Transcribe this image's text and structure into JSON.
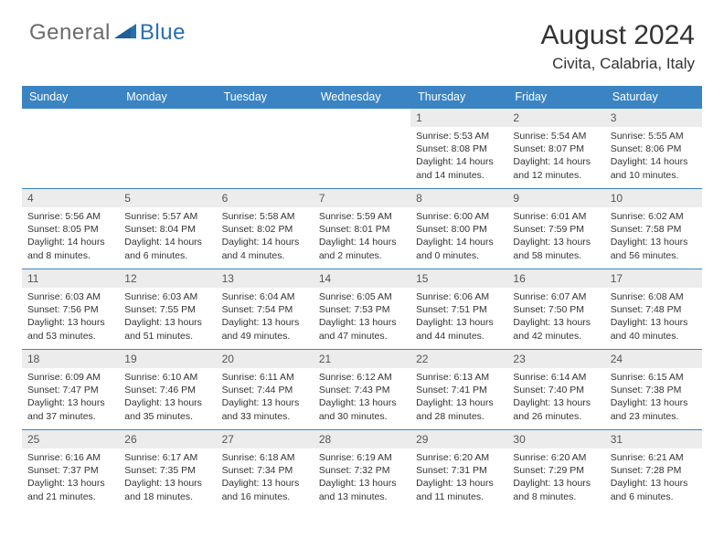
{
  "brand": {
    "text1": "General",
    "text2": "Blue"
  },
  "title": "August 2024",
  "location": "Civita, Calabria, Italy",
  "weekdays": [
    "Sunday",
    "Monday",
    "Tuesday",
    "Wednesday",
    "Thursday",
    "Friday",
    "Saturday"
  ],
  "colors": {
    "header_bg": "#3b84c4",
    "header_fg": "#ffffff",
    "daybar_bg": "#ececec",
    "divider": "#3b84c4",
    "logo_blue": "#2a6fb0",
    "logo_grey": "#6b6b6b"
  },
  "grid": [
    [
      {
        "empty": true
      },
      {
        "empty": true
      },
      {
        "empty": true
      },
      {
        "empty": true
      },
      {
        "day": "1",
        "sunrise": "Sunrise: 5:53 AM",
        "sunset": "Sunset: 8:08 PM",
        "daylight": "Daylight: 14 hours and 14 minutes."
      },
      {
        "day": "2",
        "sunrise": "Sunrise: 5:54 AM",
        "sunset": "Sunset: 8:07 PM",
        "daylight": "Daylight: 14 hours and 12 minutes."
      },
      {
        "day": "3",
        "sunrise": "Sunrise: 5:55 AM",
        "sunset": "Sunset: 8:06 PM",
        "daylight": "Daylight: 14 hours and 10 minutes."
      }
    ],
    [
      {
        "day": "4",
        "sunrise": "Sunrise: 5:56 AM",
        "sunset": "Sunset: 8:05 PM",
        "daylight": "Daylight: 14 hours and 8 minutes."
      },
      {
        "day": "5",
        "sunrise": "Sunrise: 5:57 AM",
        "sunset": "Sunset: 8:04 PM",
        "daylight": "Daylight: 14 hours and 6 minutes."
      },
      {
        "day": "6",
        "sunrise": "Sunrise: 5:58 AM",
        "sunset": "Sunset: 8:02 PM",
        "daylight": "Daylight: 14 hours and 4 minutes."
      },
      {
        "day": "7",
        "sunrise": "Sunrise: 5:59 AM",
        "sunset": "Sunset: 8:01 PM",
        "daylight": "Daylight: 14 hours and 2 minutes."
      },
      {
        "day": "8",
        "sunrise": "Sunrise: 6:00 AM",
        "sunset": "Sunset: 8:00 PM",
        "daylight": "Daylight: 14 hours and 0 minutes."
      },
      {
        "day": "9",
        "sunrise": "Sunrise: 6:01 AM",
        "sunset": "Sunset: 7:59 PM",
        "daylight": "Daylight: 13 hours and 58 minutes."
      },
      {
        "day": "10",
        "sunrise": "Sunrise: 6:02 AM",
        "sunset": "Sunset: 7:58 PM",
        "daylight": "Daylight: 13 hours and 56 minutes."
      }
    ],
    [
      {
        "day": "11",
        "sunrise": "Sunrise: 6:03 AM",
        "sunset": "Sunset: 7:56 PM",
        "daylight": "Daylight: 13 hours and 53 minutes."
      },
      {
        "day": "12",
        "sunrise": "Sunrise: 6:03 AM",
        "sunset": "Sunset: 7:55 PM",
        "daylight": "Daylight: 13 hours and 51 minutes."
      },
      {
        "day": "13",
        "sunrise": "Sunrise: 6:04 AM",
        "sunset": "Sunset: 7:54 PM",
        "daylight": "Daylight: 13 hours and 49 minutes."
      },
      {
        "day": "14",
        "sunrise": "Sunrise: 6:05 AM",
        "sunset": "Sunset: 7:53 PM",
        "daylight": "Daylight: 13 hours and 47 minutes."
      },
      {
        "day": "15",
        "sunrise": "Sunrise: 6:06 AM",
        "sunset": "Sunset: 7:51 PM",
        "daylight": "Daylight: 13 hours and 44 minutes."
      },
      {
        "day": "16",
        "sunrise": "Sunrise: 6:07 AM",
        "sunset": "Sunset: 7:50 PM",
        "daylight": "Daylight: 13 hours and 42 minutes."
      },
      {
        "day": "17",
        "sunrise": "Sunrise: 6:08 AM",
        "sunset": "Sunset: 7:48 PM",
        "daylight": "Daylight: 13 hours and 40 minutes."
      }
    ],
    [
      {
        "day": "18",
        "sunrise": "Sunrise: 6:09 AM",
        "sunset": "Sunset: 7:47 PM",
        "daylight": "Daylight: 13 hours and 37 minutes."
      },
      {
        "day": "19",
        "sunrise": "Sunrise: 6:10 AM",
        "sunset": "Sunset: 7:46 PM",
        "daylight": "Daylight: 13 hours and 35 minutes."
      },
      {
        "day": "20",
        "sunrise": "Sunrise: 6:11 AM",
        "sunset": "Sunset: 7:44 PM",
        "daylight": "Daylight: 13 hours and 33 minutes."
      },
      {
        "day": "21",
        "sunrise": "Sunrise: 6:12 AM",
        "sunset": "Sunset: 7:43 PM",
        "daylight": "Daylight: 13 hours and 30 minutes."
      },
      {
        "day": "22",
        "sunrise": "Sunrise: 6:13 AM",
        "sunset": "Sunset: 7:41 PM",
        "daylight": "Daylight: 13 hours and 28 minutes."
      },
      {
        "day": "23",
        "sunrise": "Sunrise: 6:14 AM",
        "sunset": "Sunset: 7:40 PM",
        "daylight": "Daylight: 13 hours and 26 minutes."
      },
      {
        "day": "24",
        "sunrise": "Sunrise: 6:15 AM",
        "sunset": "Sunset: 7:38 PM",
        "daylight": "Daylight: 13 hours and 23 minutes."
      }
    ],
    [
      {
        "day": "25",
        "sunrise": "Sunrise: 6:16 AM",
        "sunset": "Sunset: 7:37 PM",
        "daylight": "Daylight: 13 hours and 21 minutes."
      },
      {
        "day": "26",
        "sunrise": "Sunrise: 6:17 AM",
        "sunset": "Sunset: 7:35 PM",
        "daylight": "Daylight: 13 hours and 18 minutes."
      },
      {
        "day": "27",
        "sunrise": "Sunrise: 6:18 AM",
        "sunset": "Sunset: 7:34 PM",
        "daylight": "Daylight: 13 hours and 16 minutes."
      },
      {
        "day": "28",
        "sunrise": "Sunrise: 6:19 AM",
        "sunset": "Sunset: 7:32 PM",
        "daylight": "Daylight: 13 hours and 13 minutes."
      },
      {
        "day": "29",
        "sunrise": "Sunrise: 6:20 AM",
        "sunset": "Sunset: 7:31 PM",
        "daylight": "Daylight: 13 hours and 11 minutes."
      },
      {
        "day": "30",
        "sunrise": "Sunrise: 6:20 AM",
        "sunset": "Sunset: 7:29 PM",
        "daylight": "Daylight: 13 hours and 8 minutes."
      },
      {
        "day": "31",
        "sunrise": "Sunrise: 6:21 AM",
        "sunset": "Sunset: 7:28 PM",
        "daylight": "Daylight: 13 hours and 6 minutes."
      }
    ]
  ]
}
